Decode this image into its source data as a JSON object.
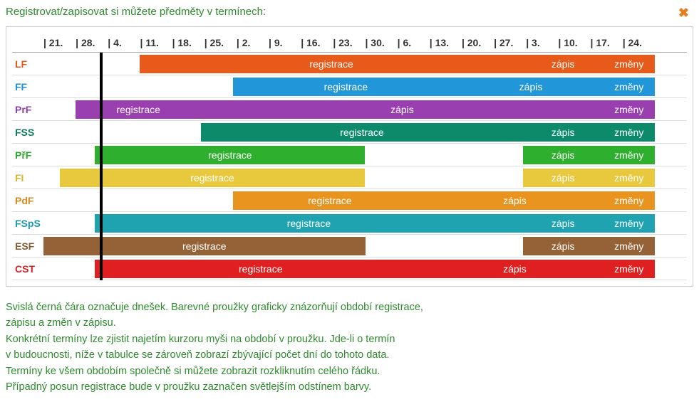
{
  "title": "Registrovat/zapisovat si můžete předměty v termínech:",
  "close_icon": "✖",
  "track_width_units": 20,
  "today_unit": 1.75,
  "dates": [
    "21.",
    "28.",
    "4.",
    "11.",
    "18.",
    "25.",
    "2.",
    "9.",
    "16.",
    "23.",
    "30.",
    "6.",
    "13.",
    "20.",
    "27.",
    "3.",
    "10.",
    "17.",
    "24."
  ],
  "seg_labels": {
    "reg": "registrace",
    "zap": "zápis",
    "chg": "změny"
  },
  "rows": [
    {
      "label": "LF",
      "label_color": "#e05a1a",
      "segments": [
        {
          "start": 3.0,
          "end": 14.9,
          "color": "#e85a1a",
          "text_key": "reg"
        },
        {
          "start": 14.9,
          "end": 17.4,
          "color": "#e85a1a",
          "text_key": "zap"
        },
        {
          "start": 17.4,
          "end": 19.0,
          "color": "#e85a1a",
          "text_key": "chg"
        }
      ]
    },
    {
      "label": "FF",
      "label_color": "#1e90d8",
      "segments": [
        {
          "start": 5.9,
          "end": 12.9,
          "color": "#2196d8",
          "text_key": "reg"
        },
        {
          "start": 12.9,
          "end": 17.4,
          "color": "#2196d8",
          "text_key": "zap"
        },
        {
          "start": 17.4,
          "end": 19.0,
          "color": "#2196d8",
          "text_key": "chg"
        }
      ]
    },
    {
      "label": "PrF",
      "label_color": "#8e3fa8",
      "segments": [
        {
          "start": 1.0,
          "end": 4.9,
          "color": "#9a3fb0",
          "text_key": "reg"
        },
        {
          "start": 4.9,
          "end": 17.4,
          "color": "#9a3fb0",
          "text_key": "zap"
        },
        {
          "start": 17.4,
          "end": 19.0,
          "color": "#9a3fb0",
          "text_key": "chg"
        }
      ]
    },
    {
      "label": "FSS",
      "label_color": "#0d7a5e",
      "segments": [
        {
          "start": 4.9,
          "end": 14.9,
          "color": "#0d8a6a",
          "text_key": "reg"
        },
        {
          "start": 14.9,
          "end": 17.4,
          "color": "#0d8a6a",
          "text_key": "zap"
        },
        {
          "start": 17.4,
          "end": 19.0,
          "color": "#0d8a6a",
          "text_key": "chg"
        }
      ]
    },
    {
      "label": "PřF",
      "label_color": "#2da82d",
      "segments": [
        {
          "start": 1.6,
          "end": 10.0,
          "color": "#2eaf2e",
          "text_key": "reg"
        },
        {
          "start": 14.9,
          "end": 17.4,
          "color": "#2eaf2e",
          "text_key": "zap"
        },
        {
          "start": 17.4,
          "end": 19.0,
          "color": "#2eaf2e",
          "text_key": "chg"
        }
      ]
    },
    {
      "label": "FI",
      "label_color": "#d4b82e",
      "segments": [
        {
          "start": 0.5,
          "end": 10.0,
          "color": "#e8c93e",
          "text_key": "reg"
        },
        {
          "start": 14.9,
          "end": 17.4,
          "color": "#e8c93e",
          "text_key": "zap"
        },
        {
          "start": 17.4,
          "end": 19.0,
          "color": "#e8c93e",
          "text_key": "chg"
        }
      ]
    },
    {
      "label": "PdF",
      "label_color": "#d88a1e",
      "segments": [
        {
          "start": 5.9,
          "end": 11.9,
          "color": "#e8941e",
          "text_key": "reg"
        },
        {
          "start": 11.9,
          "end": 17.4,
          "color": "#e8941e",
          "text_key": "zap"
        },
        {
          "start": 17.4,
          "end": 19.0,
          "color": "#e8941e",
          "text_key": "chg"
        }
      ]
    },
    {
      "label": "FSpS",
      "label_color": "#1a9aa8",
      "segments": [
        {
          "start": 1.6,
          "end": 14.9,
          "color": "#1fa3b0",
          "text_key": "reg"
        },
        {
          "start": 14.9,
          "end": 17.4,
          "color": "#1fa3b0",
          "text_key": "zap"
        },
        {
          "start": 17.4,
          "end": 19.0,
          "color": "#1fa3b0",
          "text_key": "chg"
        }
      ]
    },
    {
      "label": "ESF",
      "label_color": "#8a5a2e",
      "segments": [
        {
          "start": 0.0,
          "end": 10.0,
          "color": "#946236",
          "text_key": "reg"
        },
        {
          "start": 14.9,
          "end": 17.4,
          "color": "#946236",
          "text_key": "zap"
        },
        {
          "start": 17.4,
          "end": 19.0,
          "color": "#946236",
          "text_key": "chg"
        }
      ]
    },
    {
      "label": "CST",
      "label_color": "#d42020",
      "segments": [
        {
          "start": 1.6,
          "end": 11.9,
          "color": "#e02020",
          "text_key": "reg"
        },
        {
          "start": 11.9,
          "end": 17.4,
          "color": "#e02020",
          "text_key": "zap"
        },
        {
          "start": 17.4,
          "end": 19.0,
          "color": "#e02020",
          "text_key": "chg"
        }
      ]
    }
  ],
  "description": [
    "Svislá černá čára označuje dnešek. Barevné proužky graficky znázorňují období registrace,",
    "zápisu a změn v zápisu.",
    "Konkrétní termíny lze zjistit najetím kurzoru myši na období v proužku. Jde-li o termín",
    "v budoucnosti, níže v tabulce se zároveň zobrazí zbývající počet dní do tohoto data.",
    "Termíny ke všem obdobím společně si můžete zobrazit rozkliknutím celého řádku.",
    "Případný posun registrace bude v proužku zaznačen světlejším odstínem barvy."
  ]
}
